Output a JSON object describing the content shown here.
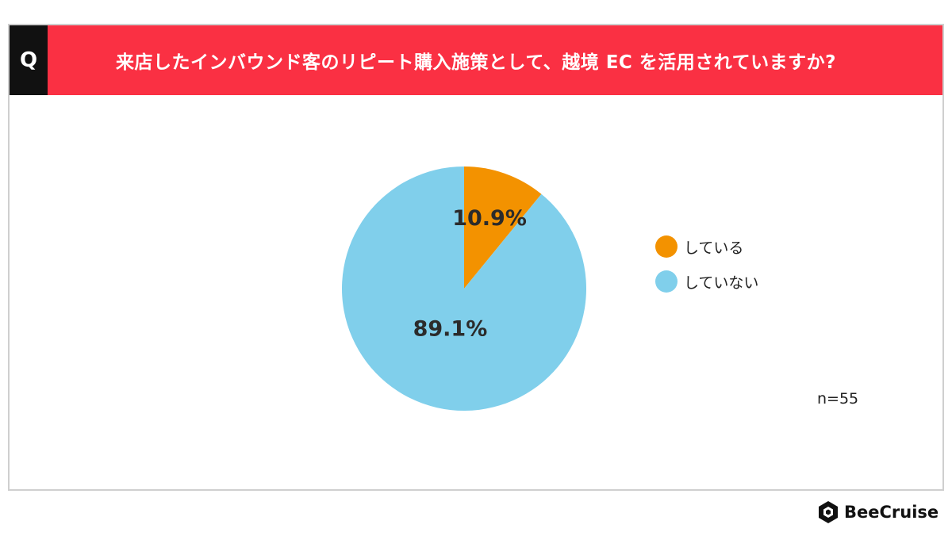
{
  "question": {
    "badge": "Q",
    "text": "来店したインバウンド客のリピート購入施策として、越境 EC を活用されていますか?"
  },
  "chart_data": {
    "type": "pie",
    "slices": [
      {
        "label": "している",
        "value": 10.9,
        "display": "10.9%",
        "color": "#f39200"
      },
      {
        "label": "していない",
        "value": 89.1,
        "display": "89.1%",
        "color": "#80cfeb"
      }
    ],
    "legend_position": "right",
    "note": "n=55"
  },
  "brand": {
    "name": "BeeCruise"
  }
}
